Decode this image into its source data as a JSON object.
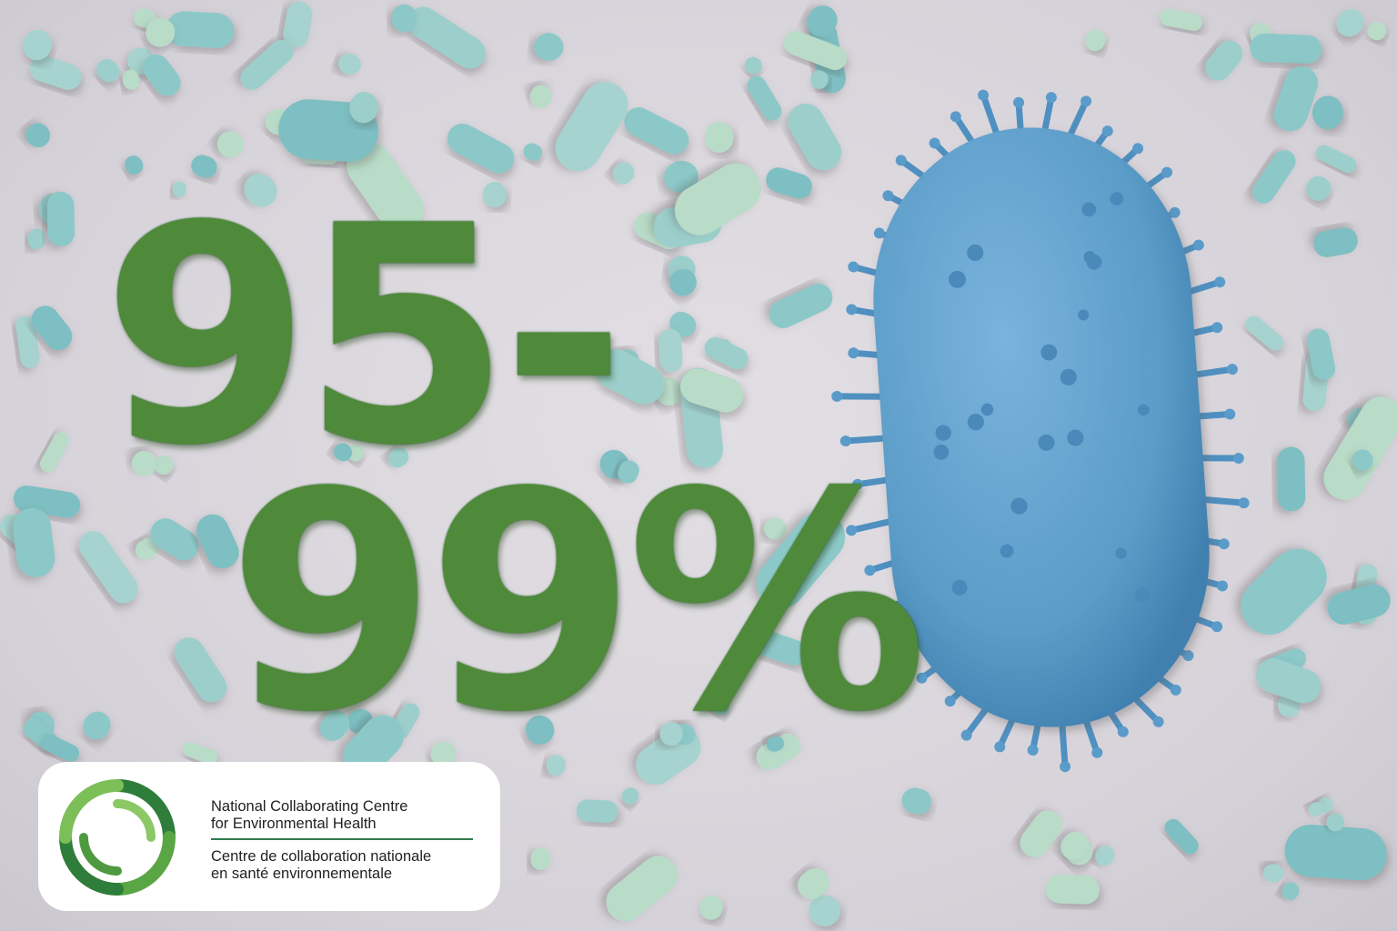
{
  "headline": {
    "line1": "95-",
    "line2": "99%"
  },
  "colors": {
    "headline_green": "#4e8a3a",
    "bacterium_blue": "#5b9cc8",
    "microbe_teal": "#8cc8c8",
    "background": "#d9d6dc"
  },
  "logo": {
    "english_line1": "National Collaborating Centre",
    "english_line2": "for Environmental Health",
    "french_line1": "Centre de collaboration nationale",
    "french_line2": "en santé environnementale",
    "icon": "green-swirl-ring-icon"
  }
}
